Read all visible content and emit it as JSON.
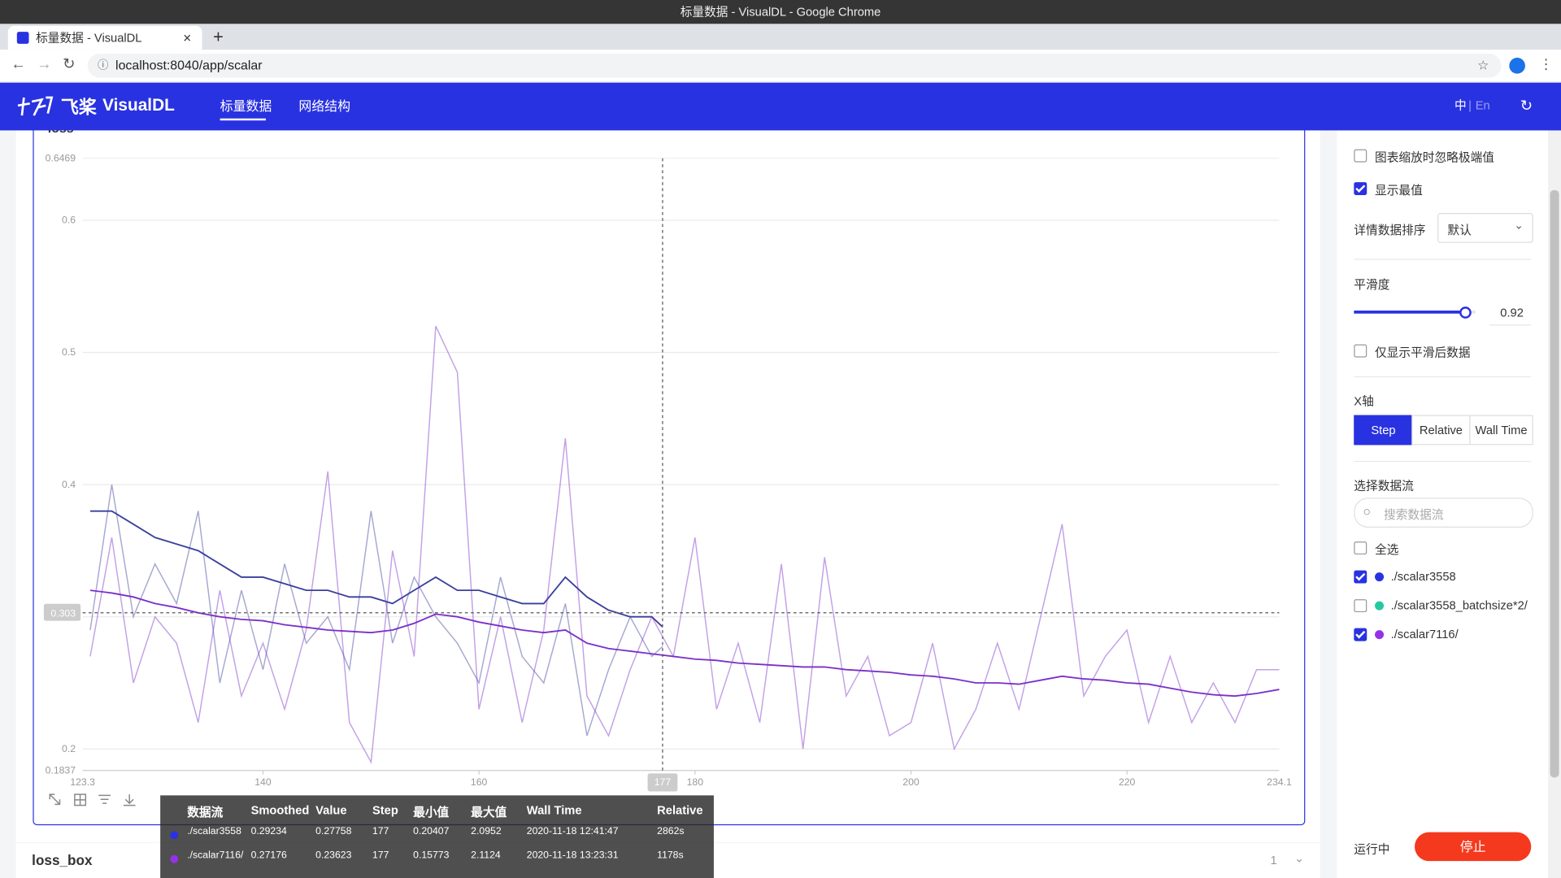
{
  "window": {
    "title": "标量数据 - VisualDL - Google Chrome"
  },
  "tab": {
    "title": "标量数据 - VisualDL"
  },
  "address": "localhost:8040/app/scalar",
  "header": {
    "logo": "飞桨",
    "brand": "VisualDL",
    "nav": [
      "标量数据",
      "网络结构"
    ],
    "lang": {
      "zh": "中",
      "sep": "|",
      "en": "En"
    }
  },
  "chart_data": {
    "type": "line",
    "title": "loss",
    "xlim": [
      123.3,
      234.1
    ],
    "xticks": [
      140,
      160,
      180,
      200,
      220
    ],
    "ylim": [
      0.1837,
      0.6469
    ],
    "yticks": [
      0.2,
      0.3,
      0.4,
      0.5,
      0.6
    ],
    "grid": true,
    "cursor": {
      "x": 177,
      "y": 0.303
    },
    "series": [
      {
        "name": "./scalar3558",
        "color": "#3a3f9c",
        "x": [
          124,
          126,
          128,
          130,
          132,
          134,
          136,
          138,
          140,
          142,
          144,
          146,
          148,
          150,
          152,
          154,
          156,
          158,
          160,
          162,
          164,
          166,
          168,
          170,
          172,
          174,
          176,
          177
        ],
        "values": [
          0.29,
          0.4,
          0.3,
          0.34,
          0.31,
          0.38,
          0.25,
          0.32,
          0.26,
          0.34,
          0.28,
          0.3,
          0.26,
          0.38,
          0.28,
          0.33,
          0.3,
          0.28,
          0.25,
          0.33,
          0.27,
          0.25,
          0.31,
          0.21,
          0.26,
          0.3,
          0.27,
          0.27758
        ],
        "smoothed": [
          0.38,
          0.38,
          0.37,
          0.36,
          0.355,
          0.35,
          0.34,
          0.33,
          0.33,
          0.325,
          0.32,
          0.32,
          0.315,
          0.315,
          0.31,
          0.32,
          0.33,
          0.32,
          0.32,
          0.315,
          0.31,
          0.31,
          0.33,
          0.315,
          0.305,
          0.3,
          0.3,
          0.29234
        ]
      },
      {
        "name": "./scalar7116/",
        "color": "#7b2fc9",
        "x": [
          124,
          126,
          128,
          130,
          132,
          134,
          136,
          138,
          140,
          142,
          144,
          146,
          148,
          150,
          152,
          154,
          156,
          158,
          160,
          162,
          164,
          166,
          168,
          170,
          172,
          174,
          176,
          178,
          180,
          182,
          184,
          186,
          188,
          190,
          192,
          194,
          196,
          198,
          200,
          202,
          204,
          206,
          208,
          210,
          212,
          214,
          216,
          218,
          220,
          222,
          224,
          226,
          228,
          230,
          232,
          234.1
        ],
        "values": [
          0.27,
          0.36,
          0.25,
          0.3,
          0.28,
          0.22,
          0.32,
          0.24,
          0.28,
          0.23,
          0.29,
          0.41,
          0.22,
          0.19,
          0.35,
          0.27,
          0.52,
          0.485,
          0.23,
          0.3,
          0.22,
          0.29,
          0.435,
          0.24,
          0.21,
          0.26,
          0.3,
          0.27,
          0.36,
          0.23,
          0.28,
          0.22,
          0.34,
          0.2,
          0.345,
          0.24,
          0.27,
          0.21,
          0.22,
          0.28,
          0.2,
          0.23,
          0.28,
          0.23,
          0.3,
          0.37,
          0.24,
          0.27,
          0.29,
          0.22,
          0.27,
          0.22,
          0.25,
          0.22,
          0.26,
          0.26
        ],
        "smoothed": [
          0.32,
          0.318,
          0.315,
          0.31,
          0.307,
          0.303,
          0.3,
          0.298,
          0.297,
          0.294,
          0.292,
          0.29,
          0.289,
          0.288,
          0.29,
          0.295,
          0.302,
          0.3,
          0.296,
          0.293,
          0.29,
          0.288,
          0.29,
          0.28,
          0.276,
          0.274,
          0.272,
          0.27,
          0.268,
          0.267,
          0.265,
          0.264,
          0.263,
          0.262,
          0.262,
          0.26,
          0.259,
          0.258,
          0.256,
          0.255,
          0.253,
          0.25,
          0.25,
          0.249,
          0.252,
          0.255,
          0.253,
          0.252,
          0.25,
          0.249,
          0.246,
          0.243,
          0.241,
          0.24,
          0.242,
          0.245
        ]
      }
    ]
  },
  "tooltip": {
    "columns": [
      "数据流",
      "Smoothed",
      "Value",
      "Step",
      "最小值",
      "最大值",
      "Wall Time",
      "Relative"
    ],
    "rows": [
      {
        "color": "#2932e1",
        "cells": [
          "./scalar3558",
          0.29234,
          0.27758,
          177,
          0.20407,
          2.0952,
          "2020-11-18 12:41:47",
          "2862s"
        ]
      },
      {
        "color": "#9532e8",
        "cells": [
          "./scalar7116/",
          0.27176,
          0.23623,
          177,
          0.15773,
          2.1124,
          "2020-11-18 13:23:31",
          "1178s"
        ]
      }
    ]
  },
  "sidebar": {
    "ignore_outliers": {
      "label": "图表缩放时忽略极端值",
      "checked": false
    },
    "show_extremes": {
      "label": "显示最值",
      "checked": true
    },
    "sort": {
      "label": "详情数据排序",
      "value": "默认"
    },
    "smoothing": {
      "label": "平滑度",
      "value": 0.92,
      "min": 0,
      "max": 1
    },
    "smoothed_only": {
      "label": "仅显示平滑后数据",
      "checked": false
    },
    "x_axis": {
      "label": "X轴",
      "options": [
        "Step",
        "Relative",
        "Wall Time"
      ],
      "selected": 0
    },
    "runs": {
      "label": "选择数据流",
      "search": "搜索数据流",
      "all": {
        "label": "全选",
        "checked": false
      },
      "items": [
        {
          "name": "./scalar3558",
          "color": "#2932e1",
          "checked": true
        },
        {
          "name": "./scalar3558_batchsize*2/",
          "color": "#25c9a1",
          "checked": false
        },
        {
          "name": "./scalar7116/",
          "color": "#9532e8",
          "checked": true
        }
      ]
    },
    "status": "运行中",
    "stop": "停止"
  },
  "loss_box": {
    "title": "loss_box",
    "count": 1
  }
}
